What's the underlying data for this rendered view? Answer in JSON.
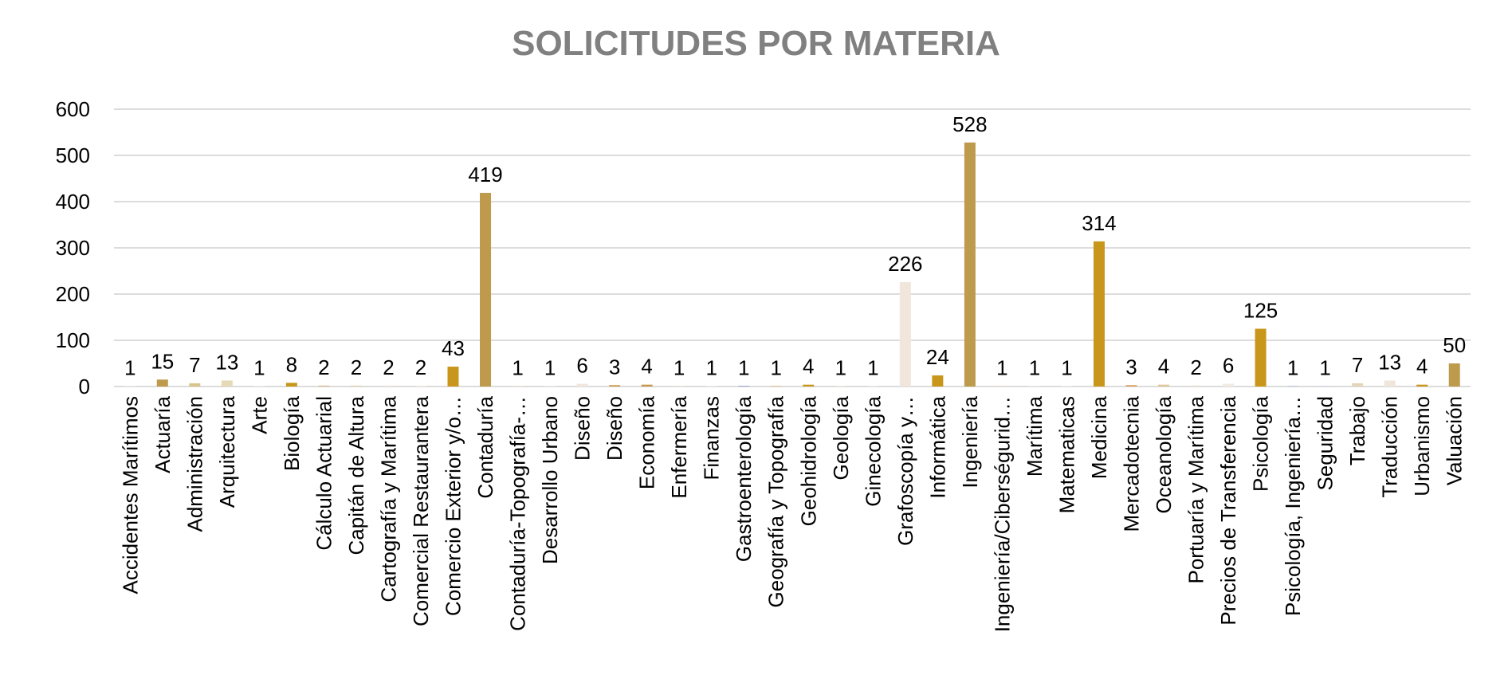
{
  "chart_data": {
    "type": "bar",
    "title": "SOLICITUDES POR MATERIA",
    "xlabel": "",
    "ylabel": "",
    "ylim": [
      0,
      600
    ],
    "yticks": [
      0,
      100,
      200,
      300,
      400,
      500,
      600
    ],
    "grid": true,
    "legend": "none",
    "categories": [
      "Accidentes Marítimos",
      "Actuaría",
      "Administración",
      "Arquitectura",
      "Arte",
      "Biología",
      "Cálculo Actuarial",
      "Capitán de Altura",
      "Cartografía y Marítima",
      "Comercial Restaurantera",
      "Comercio Exterior y/o…",
      "Contaduría",
      "Contaduría-Topografía-…",
      "Desarrollo Urbano",
      "Diseño",
      "Diseño",
      "Economía",
      "Enfermería",
      "Finanzas",
      "Gastroenterología",
      "Geografía y Topografía",
      "Geohidrología",
      "Geología",
      "Ginecología",
      "Grafoscopía y…",
      "Informática",
      "Ingeniería",
      "Ingeniería/Ciberségurid…",
      "Marítima",
      "Matematicas",
      "Medicina",
      "Mercadotecnia",
      "Oceanología",
      "Portuaría y Marítima",
      "Precios de Transferencia",
      "Psicología",
      "Psicología, Ingeniería…",
      "Seguridad",
      "Trabajo",
      "Traducción",
      "Urbanismo",
      "Valuación"
    ],
    "values": [
      1,
      15,
      7,
      13,
      1,
      8,
      2,
      2,
      2,
      2,
      43,
      419,
      1,
      1,
      6,
      3,
      4,
      1,
      1,
      1,
      1,
      4,
      1,
      1,
      226,
      24,
      528,
      1,
      1,
      1,
      314,
      3,
      4,
      2,
      6,
      125,
      1,
      1,
      7,
      13,
      4,
      50
    ],
    "colors": [
      "#f0e6dc",
      "#bd9a4c",
      "#d8c48e",
      "#e6d9b6",
      "#efe7de",
      "#c9961c",
      "#dbb88c",
      "#e4d3b3",
      "#eee2d6",
      "#f2ebe3",
      "#c9961c",
      "#bd9a4c",
      "#e7d8c0",
      "#eee6dc",
      "#f0e8de",
      "#cf9a45",
      "#c8964c",
      "#e9dcc8",
      "#eee6dc",
      "#5b7fc0",
      "#cfa860",
      "#c9961c",
      "#ebe1d4",
      "#ece3d8",
      "#f0e6dc",
      "#c9961c",
      "#bd9a4c",
      "#e0cbaa",
      "#ede4d8",
      "#f0e8de",
      "#c9961c",
      "#d6a060",
      "#e0c898",
      "#e5dccd",
      "#f2ebe3",
      "#c9961c",
      "#9fb3d6",
      "#b8c8e0",
      "#e3d6b8",
      "#f0e6dc",
      "#c9961c",
      "#bd9a4c"
    ]
  }
}
